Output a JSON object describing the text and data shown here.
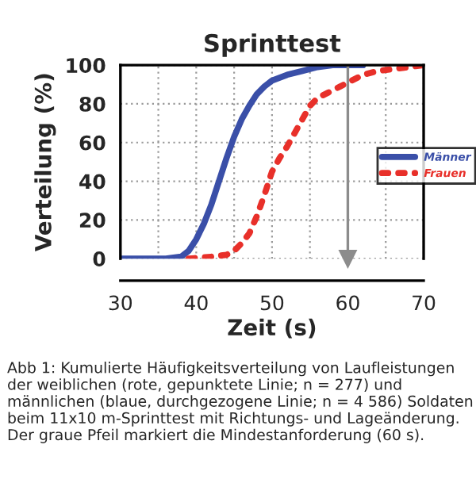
{
  "chart_data": {
    "type": "line",
    "title": "Sprinttest",
    "xlabel": "Zeit (s)",
    "ylabel": "Verteilung (%)",
    "series": [
      {
        "name": "Männer",
        "color": "#3a4fa8",
        "line_style": "solid",
        "x": [
          30,
          36,
          38,
          39,
          40,
          41,
          42,
          43,
          44,
          45,
          46,
          47,
          48,
          49,
          50,
          52,
          54,
          56,
          58,
          60,
          62
        ],
        "values": [
          0,
          0,
          1,
          4,
          10,
          18,
          28,
          40,
          52,
          63,
          72,
          79,
          85,
          89,
          92,
          95,
          97,
          99,
          100,
          100,
          100
        ]
      },
      {
        "name": "Frauen",
        "color": "#e8302a",
        "line_style": "dotted",
        "x": [
          39,
          42,
          44,
          45,
          46,
          47,
          48,
          49,
          50,
          51,
          52,
          53,
          54,
          55,
          56,
          57,
          58,
          59,
          60,
          61,
          62,
          64,
          66,
          68,
          70
        ],
        "values": [
          0,
          1,
          2,
          4,
          8,
          13,
          22,
          33,
          45,
          52,
          58,
          65,
          72,
          79,
          83,
          85,
          87,
          89,
          91,
          93,
          95,
          97,
          98,
          99,
          100
        ]
      }
    ],
    "xlim": [
      30,
      70
    ],
    "xticks": [
      30,
      {
        "value": 35,
        "label": null
      },
      40,
      {
        "value": 45,
        "label": null
      },
      50,
      {
        "value": 55,
        "label": null
      },
      60,
      {
        "value": 65,
        "label": null
      },
      70
    ],
    "ylim": [
      0,
      100
    ],
    "yticks": [
      0,
      20,
      40,
      60,
      80,
      100
    ],
    "grid": true,
    "legend": "right",
    "ref_lines": [
      {
        "axis": "x",
        "value": 60,
        "color": "#8c8c8c"
      }
    ],
    "annotations": [
      "Abb 1: Kumulierte Häufigkeitsverteilung von Laufleistungen der weiblichen (rote, gepunktete Linie; n = 277) und männlichen (blaue, durchgezogene Linie; n = 4 586) Soldaten beim 11x10 m-Sprinttest mit Richtungs- und Lageänderung. Der graue Pfeil markiert die Mindestanforderung (60 s)."
    ]
  }
}
